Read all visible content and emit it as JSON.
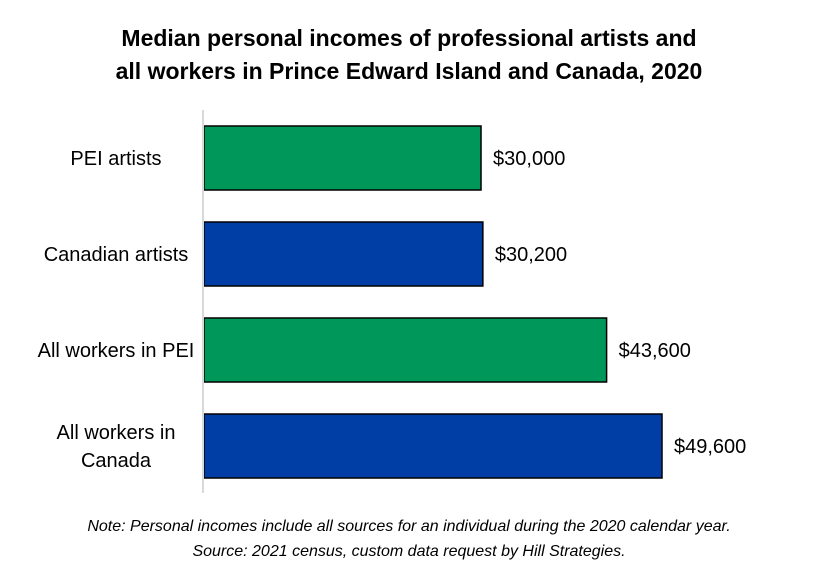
{
  "chart_data": {
    "type": "bar",
    "orientation": "horizontal",
    "title_lines": [
      "Median personal incomes of professional artists and",
      "all workers in Prince Edward Island and Canada, 2020"
    ],
    "categories": [
      "PEI artists",
      "Canadian artists",
      "All workers in PEI",
      "All workers in Canada"
    ],
    "category_label_lines": [
      [
        "PEI artists"
      ],
      [
        "Canadian artists"
      ],
      [
        "All workers in PEI"
      ],
      [
        "All workers in",
        "Canada"
      ]
    ],
    "values": [
      30000,
      30200,
      43600,
      49600
    ],
    "value_labels": [
      "$30,000",
      "$30,200",
      "$43,600",
      "$49,600"
    ],
    "bar_colors": [
      "#00975A",
      "#003DA5",
      "#00975A",
      "#003DA5"
    ],
    "xlim": [
      0,
      60000
    ],
    "grid": false,
    "legend": "none",
    "xlabel": "",
    "ylabel": ""
  },
  "notes": [
    "Note: Personal incomes include all sources for an individual during the 2020 calendar year.",
    "Source: 2021 census, custom data request by Hill Strategies."
  ]
}
